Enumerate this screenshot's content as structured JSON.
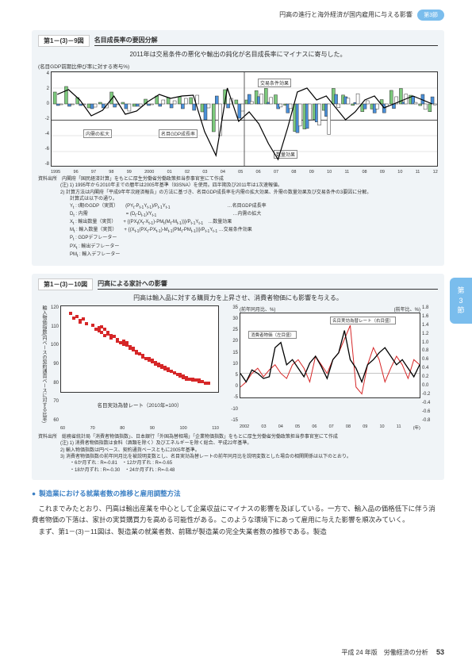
{
  "header": {
    "text": "円高の進行と海外経済が国内雇用に与える影響",
    "badge": "第3節"
  },
  "side_tab": {
    "l1": "第",
    "l2": "3",
    "l3": "節"
  },
  "fig1": {
    "num": "第1－(3)－9図",
    "title": "名目成長率の要因分解",
    "subtitle": "2011年は交易条件の悪化や輸出の鈍化が名目成長率にマイナスに寄与した。",
    "ylabel": "(名目GDP前期比伸び率に対する寄与%)",
    "ylim": [
      -8,
      4
    ],
    "yticks": [
      4,
      2,
      0,
      -2,
      -4,
      -6,
      -8
    ],
    "xticks_main": [
      "1995",
      "96",
      "97",
      "98",
      "99",
      "2000",
      "01",
      "02",
      "03",
      "04",
      "05",
      "06",
      "07",
      "08",
      "09",
      "10",
      "11"
    ],
    "xticks_q": [
      "I",
      "II",
      "III",
      "IV"
    ],
    "qpanels": [
      "08",
      "09",
      "10",
      "11",
      "12"
    ],
    "annotations": {
      "a1": "交易条件効果",
      "a2": "内需の拡大",
      "a3": "名目GDP成長率",
      "a4": "数量効果"
    },
    "colors": {
      "trade": "#4a90d9",
      "demand": "#7cc97c",
      "qty": "#ffffff",
      "line": "#000000",
      "grid": "#cccccc"
    },
    "series": {
      "years": [
        1995,
        1996,
        1997,
        1998,
        1999,
        2000,
        2001,
        2002,
        2003,
        2004,
        2005,
        2006,
        2007,
        2008,
        2009,
        2010,
        2011
      ],
      "gdp_line": [
        1.2,
        1.8,
        0.5,
        -1.5,
        -0.8,
        1.0,
        -1.3,
        -0.9,
        0.3,
        1.2,
        0.7,
        1.0,
        1.1,
        -3.5,
        -6.5,
        2.0,
        -2.2
      ],
      "demand": [
        1.5,
        2.2,
        0.8,
        -0.5,
        0.2,
        1.5,
        0.2,
        -0.3,
        0.6,
        1.0,
        0.8,
        0.9,
        0.8,
        -1.0,
        -3.5,
        1.8,
        0.5
      ],
      "trade_cond": [
        -0.2,
        -0.3,
        -0.2,
        -0.6,
        -0.5,
        -0.4,
        -0.6,
        -0.3,
        -0.2,
        -0.3,
        -0.5,
        -0.6,
        -0.8,
        -2.0,
        1.0,
        -0.5,
        -1.8
      ],
      "qty": [
        -0.1,
        -0.1,
        -0.1,
        -0.4,
        -0.5,
        -0.1,
        -0.9,
        -0.3,
        -0.1,
        0.5,
        0.4,
        0.7,
        1.1,
        -0.5,
        -4.0,
        0.7,
        -0.9
      ]
    },
    "notes": {
      "src_label": "資料出所",
      "src": "内閣府「国民経済計算」をもとに厚生労働省労働政策担当参事官室にて作成",
      "n1": "(注) 1) 1995年から2010年までの暦年は2005年基準（93SNA）を使用。四半期及び2011年は1次速報値。",
      "n2": "2) 計算方法は内閣府「平成9年年次経済報告」の方法に基づき、名目GDP成長率を内需の拡大効果、外需の数量効果及び交易条件の3要因に分解。",
      "n3": "　　計算式は以下の通り。",
      "eq1": "Y<sub>t</sub> : t期のGDP（実質）　　(PY<sub>t</sub>-P<sub>t-1</sub>Y<sub>t-1</sub>)/P<sub>t-1</sub>Y<sub>t-1</sub>　　　　　　　　　　　　…名目GDP成長率",
      "eq2": "D<sub>t</sub> : 内需　　　　　　　　= (D<sub>t</sub>-D<sub>t-1</sub>)/Y<sub>t-1</sub>　　　　　　　　　　　　　　　　…内需の拡大",
      "eq3": "X<sub>t</sub> : 輸出数量（実質）　　+ {(PX<sub>t</sub>(X<sub>t</sub>-X<sub>t-1</sub>)-PM<sub>t</sub>(M<sub>t</sub>-M<sub>t-1</sub>))}/P<sub>t-1</sub>Y<sub>t-1</sub>　…数量効果",
      "eq4": "M<sub>t</sub> : 輸入数量（実質）　　+ {(X<sub>t-1</sub>(PX<sub>t</sub>-PX<sub>t-1</sub>)-M<sub>t-1</sub>(PM<sub>t</sub>-PM<sub>t-1</sub>))}/P<sub>t-1</sub>Y<sub>t-1</sub> …交易条件効果",
      "eq5": "P<sub>t</sub> : GDPデフレーター",
      "eq6": "PX<sub>t</sub> : 輸出デフレーター",
      "eq7": "PM<sub>t</sub> : 輸入デフレーター"
    }
  },
  "fig2": {
    "num": "第1－(3)－10図",
    "title": "円高による家計への影響",
    "subtitle": "円高は輸入品に対する購買力を上昇させ、消費者物価にも影響を与える。",
    "left": {
      "ylabel": "輸入物価指数(円ベースの契約通貨ベースに対する比率)",
      "ylim": [
        60,
        120
      ],
      "yticks": [
        120,
        110,
        100,
        90,
        80,
        70,
        60
      ],
      "xlabel": "名目実効為替レート（2010年=100）",
      "xlim": [
        60,
        110
      ],
      "xticks": [
        60,
        70,
        80,
        90,
        100,
        110
      ],
      "color": "#d62728",
      "points": [
        [
          63,
          115
        ],
        [
          64,
          112
        ],
        [
          65,
          113
        ],
        [
          66,
          110
        ],
        [
          67,
          111
        ],
        [
          68,
          108
        ],
        [
          66,
          109
        ],
        [
          70,
          107
        ],
        [
          71,
          104
        ],
        [
          72,
          105
        ],
        [
          73,
          102
        ],
        [
          74,
          100
        ],
        [
          75,
          101
        ],
        [
          76,
          98
        ],
        [
          72,
          103
        ],
        [
          73,
          106
        ],
        [
          74,
          104
        ],
        [
          75,
          102
        ],
        [
          76,
          100
        ],
        [
          77,
          99
        ],
        [
          78,
          96
        ],
        [
          78,
          97
        ],
        [
          79,
          95
        ],
        [
          80,
          94
        ],
        [
          81,
          93
        ],
        [
          82,
          91
        ],
        [
          83,
          90
        ],
        [
          84,
          89
        ],
        [
          80,
          96
        ],
        [
          81,
          95
        ],
        [
          82,
          92
        ],
        [
          83,
          91
        ],
        [
          84,
          88
        ],
        [
          85,
          87
        ],
        [
          86,
          86
        ],
        [
          86,
          85
        ],
        [
          87,
          84
        ],
        [
          88,
          83
        ],
        [
          89,
          82
        ],
        [
          90,
          80
        ],
        [
          91,
          79
        ],
        [
          92,
          78
        ],
        [
          88,
          84
        ],
        [
          89,
          83
        ],
        [
          90,
          81
        ],
        [
          91,
          80
        ],
        [
          92,
          79
        ],
        [
          93,
          77
        ],
        [
          94,
          76
        ],
        [
          93,
          78
        ],
        [
          94,
          77
        ],
        [
          95,
          75
        ],
        [
          96,
          74
        ],
        [
          97,
          73
        ],
        [
          98,
          72
        ],
        [
          99,
          71
        ],
        [
          100,
          71
        ],
        [
          101,
          70
        ],
        [
          102,
          69
        ],
        [
          103,
          69
        ],
        [
          104,
          68
        ],
        [
          105,
          68
        ],
        [
          98,
          73
        ],
        [
          99,
          72
        ],
        [
          100,
          70
        ],
        [
          102,
          70
        ],
        [
          104,
          69
        ],
        [
          106,
          67
        ],
        [
          107,
          67
        ]
      ]
    },
    "right": {
      "y1label": "(前年同月比、%)",
      "y2label": "(前年比、%)",
      "y1lim": [
        -15,
        35
      ],
      "y1ticks": [
        35,
        30,
        25,
        20,
        15,
        10,
        5,
        0,
        -5,
        -10,
        -15
      ],
      "y2lim": [
        -1.8,
        1.8
      ],
      "y2ticks": [
        "1.8",
        "1.6",
        "1.4",
        "1.2",
        "1.0",
        "0.8",
        "0.6",
        "0.4",
        "0.2",
        "0.0",
        "-0.2",
        "-0.4",
        "-0.6",
        "-0.8"
      ],
      "xlim": [
        2002,
        2012
      ],
      "xticks": [
        "2002",
        "03",
        "04",
        "05",
        "06",
        "07",
        "08",
        "09",
        "10",
        "11",
        "(年)"
      ],
      "legend": {
        "l1": "名目実効為替レート（右目盛）",
        "l2": "消費者物価（左目盛）"
      },
      "colors": {
        "cpi": "#d62728",
        "fx": "#000000"
      },
      "series_fx": [
        0,
        -5,
        2,
        0,
        -3,
        -2,
        15,
        18,
        5,
        8,
        3,
        -2,
        6,
        10,
        4,
        -3,
        8,
        12,
        25,
        8,
        3,
        -5,
        5,
        8,
        12,
        15,
        10,
        5,
        8,
        3,
        -2,
        5
      ],
      "series_cpi": [
        -8,
        -5,
        0,
        3,
        -2,
        2,
        5,
        0,
        -3,
        5,
        8,
        3,
        -5,
        10,
        5,
        0,
        8,
        12,
        20,
        28,
        -8,
        -12,
        5,
        15,
        8,
        -5,
        3,
        10,
        5,
        -3,
        8,
        5
      ]
    },
    "notes": {
      "src_label": "資料出所",
      "src": "総務省統計局「消費者物価指数」、日本銀行「外国為替相場」「企業物価指数」をもとに厚生労働省労働政策担当参事官室にて作成",
      "n1": "(注) 1) 消費者物価指数は食料（酒類を除く）及びエネルギーを除く総合、平成22年基準。",
      "n2": "2) 輸入物価指数は円ベース、契約通貨ベースともに2005年基準。",
      "n3": "3) 消費者物価指数の前年同月比を被説明変数とし、名目実効為替レートの前年同月比を説明変数とした場合の相関関係は以下のとおり。",
      "n4": "・6か月ずれ : R=-0.81　・12か月ずれ : R=-0.65",
      "n5": "・18か月ずれ : R=-0.30　・24か月ずれ : R=-0.48"
    }
  },
  "body": {
    "heading": "製造業における就業者数の推移と雇用調整方法",
    "p1": "　これまでみたとおり、円高は輸出産業を中心として企業収益にマイナスの影響を及ぼしている。一方で、輸入品の価格低下に伴う消費者物価の下落は、家計の実質購買力を高める可能性がある。このような環境下にあって雇用に与えた影響を順次みていく。",
    "p2": "　まず、第1－(3)－11図は、製造業の就業者数、前職が製造業の完全失業者数の推移である。製造"
  },
  "footer": {
    "text": "平成 24 年版　労働経済の分析",
    "page": "53"
  }
}
